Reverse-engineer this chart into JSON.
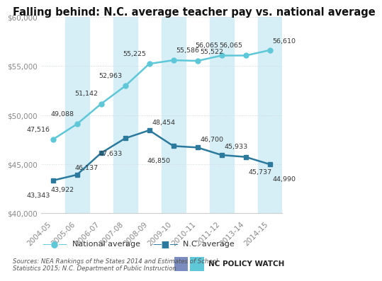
{
  "title": "Falling behind: N.C. average teacher pay vs. national average",
  "years": [
    "2004-05",
    "2005-06",
    "2006-07",
    "2007-08",
    "2008-09",
    "2009-10",
    "2010-11",
    "2011-12",
    "2013-14",
    "2014-15"
  ],
  "national_avg": [
    47516,
    49088,
    51142,
    52963,
    55225,
    55586,
    55522,
    56065,
    56065,
    56610
  ],
  "nc_avg": [
    43343,
    43922,
    46137,
    47633,
    48454,
    46850,
    46700,
    45933,
    45737,
    44990
  ],
  "national_labels": [
    "47,516",
    "49,088",
    "51,142",
    "52,963",
    "55,225",
    "55,586",
    "55,522",
    "56,065",
    "56,065",
    "56,610"
  ],
  "nc_labels": [
    "43,343",
    "43,922",
    "46,137",
    "47,633",
    "48,454",
    "46,850",
    "46,700",
    "45,933",
    "45,737",
    "44,990"
  ],
  "national_color": "#5ec8d8",
  "nc_color": "#2b7a9e",
  "bg_stripe_color": "#d6eef5",
  "plot_bg": "#ffffff",
  "fig_bg": "#ffffff",
  "ylim_min": 40000,
  "ylim_max": 60000,
  "yticks": [
    40000,
    45000,
    50000,
    55000,
    60000
  ],
  "source_text": "Sources: NEA Rankings of the States 2014 and Estimates of School\nStatistics 2015; N.C. Department of Public Instruction",
  "logo_text": "NC POLICY WATCH",
  "logo_color1": "#7b8cbe",
  "logo_color2": "#5ec8d8",
  "legend_national": "National average",
  "legend_nc": "N.C. average",
  "title_fontsize": 10.5,
  "axis_fontsize": 7.5,
  "label_fontsize": 6.8,
  "source_fontsize": 6.2,
  "legend_fontsize": 8,
  "grid_color": "#d0d8e0",
  "text_color": "#333333",
  "axis_color": "#888888"
}
